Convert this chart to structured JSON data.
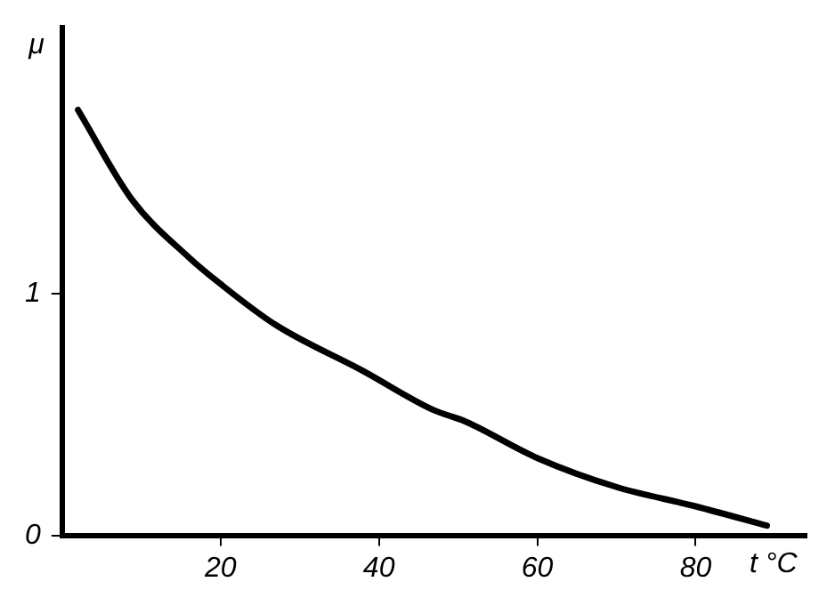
{
  "chart_data": {
    "type": "line",
    "xlabel": "t °C",
    "ylabel": "μ",
    "series": [
      {
        "color": "#000000",
        "x": [
          2,
          8.8,
          16,
          20,
          27,
          38,
          46.8,
          51,
          60,
          70,
          80,
          89
        ],
        "values": [
          1.76,
          1.39,
          1.15,
          1.04,
          0.87,
          0.68,
          0.52,
          0.47,
          0.32,
          0.2,
          0.12,
          0.04
        ]
      }
    ],
    "xlim": [
      0,
      94
    ],
    "ylim": [
      0,
      2.1
    ],
    "xticks": [
      20,
      40,
      60,
      80
    ],
    "yticks": [
      0,
      1
    ],
    "grid": false,
    "legend": false,
    "marker": "none",
    "line_style": "solid"
  }
}
